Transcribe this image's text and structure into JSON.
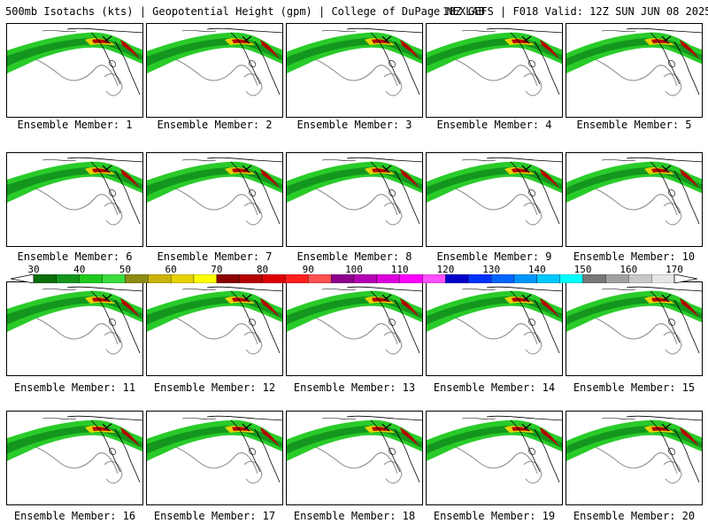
{
  "header": {
    "left_title": "500mb Isotachs (kts) | Geopotential Height (gpm) | College of DuPage NEXLAB",
    "right_title": "18Z GEFS | F018 Valid: 12Z SUN JUN 08 2025"
  },
  "panels": [
    {
      "label": "Ensemble Member: 1"
    },
    {
      "label": "Ensemble Member: 2"
    },
    {
      "label": "Ensemble Member: 3"
    },
    {
      "label": "Ensemble Member: 4"
    },
    {
      "label": "Ensemble Member: 5"
    },
    {
      "label": "Ensemble Member: 6"
    },
    {
      "label": "Ensemble Member: 7"
    },
    {
      "label": "Ensemble Member: 8"
    },
    {
      "label": "Ensemble Member: 9"
    },
    {
      "label": "Ensemble Member: 10"
    },
    {
      "label": "Ensemble Member: 11"
    },
    {
      "label": "Ensemble Member: 12"
    },
    {
      "label": "Ensemble Member: 13"
    },
    {
      "label": "Ensemble Member: 14"
    },
    {
      "label": "Ensemble Member: 15"
    },
    {
      "label": "Ensemble Member: 16"
    },
    {
      "label": "Ensemble Member: 17"
    },
    {
      "label": "Ensemble Member: 18"
    },
    {
      "label": "Ensemble Member: 19"
    },
    {
      "label": "Ensemble Member: 20"
    }
  ],
  "colorbar": {
    "ticks": [
      "30",
      "40",
      "50",
      "60",
      "70",
      "80",
      "90",
      "100",
      "110",
      "120",
      "130",
      "140",
      "150",
      "160",
      "170"
    ],
    "colors": [
      "#0a6e0a",
      "#14961e",
      "#1ec81e",
      "#3cdc3c",
      "#8c8c14",
      "#c8b40a",
      "#e6d200",
      "#ffff00",
      "#8c0000",
      "#b40000",
      "#dc0000",
      "#ff1e1e",
      "#ff5050",
      "#8c008c",
      "#b400b4",
      "#dc00dc",
      "#ff00ff",
      "#ff50ff",
      "#0000c8",
      "#0032ff",
      "#0064ff",
      "#0096ff",
      "#00c8ff",
      "#00ffff",
      "#787878",
      "#a0a0a0",
      "#c8c8c8",
      "#e6e6e6"
    ]
  }
}
